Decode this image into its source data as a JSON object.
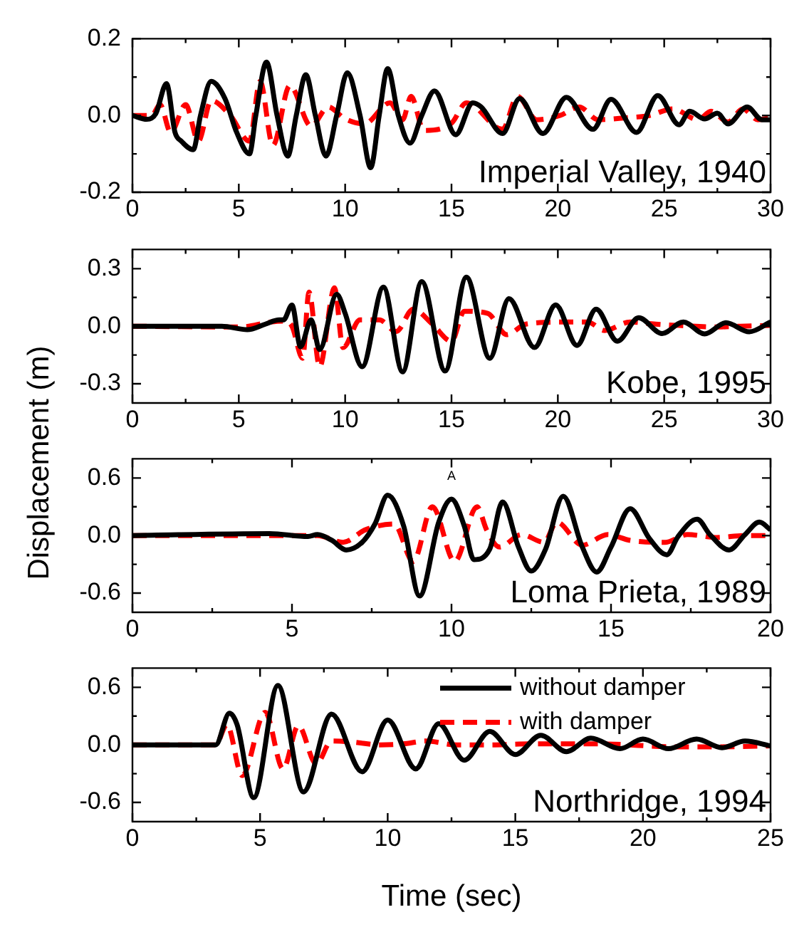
{
  "chart_data": [
    {
      "type": "line",
      "ylabel": "Displacement (m)",
      "xlim": [
        0,
        30
      ],
      "xticks": [
        0,
        {
          "value": 2.5,
          "label": null
        },
        5,
        {
          "value": 7.5,
          "label": null
        },
        10,
        {
          "value": 12.5,
          "label": null
        },
        15,
        {
          "value": 17.5,
          "label": null
        },
        20,
        {
          "value": 22.5,
          "label": null
        },
        25,
        {
          "value": 27.5,
          "label": null
        },
        30
      ],
      "ylim": [
        -0.2,
        0.2
      ],
      "yticks": [
        -0.2,
        {
          "value": -0.1,
          "label": null
        },
        {
          "value": 0,
          "label": "0.0"
        },
        {
          "value": 0.1,
          "label": null
        },
        0.2
      ],
      "annotations": [
        "Imperial Valley, 1940"
      ],
      "legend": false,
      "series": [
        {
          "color": "#000000",
          "line_style": "solid",
          "x": [
            0,
            0.67,
            1.1,
            1.6,
            2.0,
            2.3,
            2.86,
            3.2,
            3.7,
            4.35,
            4.9,
            5.5,
            5.8,
            6.3,
            6.8,
            7.3,
            7.7,
            8.15,
            8.6,
            9.1,
            9.6,
            10.1,
            10.7,
            11.2,
            11.6,
            12.0,
            12.5,
            13.05,
            13.6,
            14.2,
            15.2,
            16.0,
            16.4,
            17.4,
            18.2,
            19.3,
            20.4,
            21.65,
            22.5,
            23.7,
            24.7,
            25.7,
            26.2,
            26.9,
            27.5,
            28.0,
            28.9,
            29.6,
            30
          ],
          "values": [
            0,
            -0.01,
            0.005,
            0.083,
            -0.044,
            -0.067,
            -0.089,
            0,
            0.089,
            0.044,
            -0.044,
            -0.1,
            0,
            0.139,
            0,
            -0.106,
            0,
            0.106,
            0,
            -0.106,
            0,
            0.111,
            0,
            -0.136,
            0,
            0.122,
            0,
            -0.072,
            0,
            0.064,
            -0.05,
            0.033,
            0.022,
            -0.047,
            0.044,
            -0.047,
            0.047,
            -0.036,
            0.042,
            -0.044,
            0.052,
            -0.024,
            0.011,
            -0.009,
            0.006,
            -0.022,
            0.022,
            -0.011,
            -0.011
          ]
        },
        {
          "color": "#ff0000",
          "line_style": "dashed",
          "x": [
            0,
            0.9,
            1.3,
            1.8,
            2.5,
            3.1,
            3.7,
            4.6,
            5.5,
            6.0,
            6.6,
            7.4,
            8.4,
            9.2,
            10.0,
            10.9,
            12.1,
            12.7,
            13.1,
            13.7,
            15.0,
            15.7,
            17.4,
            18.1,
            19.0,
            20.1,
            21.0,
            21.9,
            23.2,
            24.3,
            25.4,
            26.6,
            27.2,
            28.0,
            28.7,
            29.4,
            30
          ],
          "values": [
            0,
            0,
            0.028,
            -0.044,
            0.028,
            -0.067,
            0.039,
            0,
            -0.067,
            0.089,
            -0.078,
            0.078,
            -0.028,
            0.022,
            -0.009,
            -0.022,
            0.033,
            -0.011,
            0.05,
            -0.039,
            -0.02,
            0.033,
            -0.036,
            0.05,
            -0.011,
            0,
            0.022,
            -0.011,
            -0.006,
            0,
            0.017,
            -0.011,
            0.011,
            -0.017,
            0.017,
            -0.011,
            -0.006
          ]
        }
      ]
    },
    {
      "type": "line",
      "xlim": [
        0,
        30
      ],
      "xticks": [
        0,
        {
          "value": 2.5,
          "label": null
        },
        5,
        {
          "value": 7.5,
          "label": null
        },
        10,
        {
          "value": 12.5,
          "label": null
        },
        15,
        {
          "value": 17.5,
          "label": null
        },
        20,
        {
          "value": 22.5,
          "label": null
        },
        25,
        {
          "value": 27.5,
          "label": null
        },
        30
      ],
      "ylim": [
        -0.4,
        0.4
      ],
      "yticks": [
        -0.3,
        {
          "value": -0.15,
          "label": null
        },
        {
          "value": 0,
          "label": "0.0"
        },
        {
          "value": 0.15,
          "label": null
        },
        0.3
      ],
      "annotations": [
        "Kobe, 1995"
      ],
      "legend": false,
      "series": [
        {
          "color": "#000000",
          "line_style": "solid",
          "x": [
            0,
            4.2,
            5.4,
            6.25,
            6.9,
            7.1,
            7.5,
            7.9,
            8.4,
            8.8,
            9.6,
            10.0,
            10.8,
            11.8,
            12.7,
            13.6,
            14.7,
            15.7,
            16.8,
            17.7,
            18.9,
            19.9,
            20.9,
            21.8,
            22.8,
            23.8,
            24.9,
            25.9,
            26.9,
            27.9,
            29.0,
            30
          ],
          "values": [
            0,
            0,
            -0.018,
            0.011,
            0.033,
            0.033,
            0.11,
            -0.107,
            0.033,
            -0.122,
            0.167,
            0.067,
            -0.211,
            0.204,
            -0.238,
            0.233,
            -0.233,
            0.256,
            -0.167,
            0.144,
            -0.111,
            0.111,
            -0.1,
            0.089,
            -0.078,
            0.044,
            -0.038,
            0.022,
            -0.04,
            0.018,
            -0.029,
            0.022
          ]
        },
        {
          "color": "#ff0000",
          "line_style": "dashed",
          "x": [
            0,
            5.1,
            6.5,
            7.1,
            7.5,
            8.0,
            8.3,
            8.8,
            9.5,
            9.9,
            10.7,
            11.6,
            12.4,
            13.2,
            14.1,
            15.0,
            15.6,
            16.7,
            17.6,
            18.5,
            20.3,
            21.4,
            22.2,
            23.4,
            24.6,
            25.7,
            27.5,
            28.6,
            30
          ],
          "values": [
            0,
            -0.004,
            0.022,
            0.027,
            0,
            -0.167,
            0.178,
            -0.211,
            0.2,
            -0.111,
            0.033,
            0.033,
            -0.027,
            0.089,
            0.011,
            -0.078,
            0.078,
            0.067,
            -0.044,
            0.011,
            0.022,
            0.022,
            -0.022,
            0.022,
            0.011,
            0.004,
            -0.004,
            0,
            0.004
          ]
        }
      ]
    },
    {
      "type": "line",
      "xlim": [
        0,
        20
      ],
      "xticks": [
        0,
        {
          "value": 2.5,
          "label": null
        },
        5,
        {
          "value": 7.5,
          "label": null
        },
        10,
        {
          "value": 12.5,
          "label": null
        },
        15,
        {
          "value": 17.5,
          "label": null
        },
        20
      ],
      "ylim": [
        -0.8,
        0.8
      ],
      "yticks": [
        -0.6,
        {
          "value": -0.3,
          "label": null
        },
        {
          "value": 0,
          "label": "0.0"
        },
        {
          "value": 0.3,
          "label": null
        },
        0.6
      ],
      "annotations": [
        "Loma Prieta, 1989",
        "A"
      ],
      "legend": false,
      "series": [
        {
          "color": "#000000",
          "line_style": "solid",
          "x": [
            0,
            4.3,
            5.5,
            5.8,
            6.25,
            6.7,
            7.2,
            7.6,
            8.0,
            8.5,
            9.0,
            9.6,
            10.0,
            10.4,
            10.7,
            11.2,
            11.6,
            12.1,
            12.5,
            12.95,
            13.5,
            14.1,
            14.55,
            15.0,
            15.6,
            16.2,
            16.75,
            17.1,
            17.7,
            18.1,
            18.7,
            19.2,
            19.65,
            20
          ],
          "values": [
            0,
            0.02,
            -0.01,
            0.01,
            -0.05,
            -0.15,
            -0.07,
            0.12,
            0.42,
            0.1,
            -0.63,
            0.14,
            0.38,
            0.1,
            -0.25,
            -0.14,
            0.35,
            -0.12,
            -0.37,
            -0.14,
            0.41,
            -0.12,
            -0.38,
            -0.12,
            0.28,
            -0.03,
            -0.2,
            -0.01,
            0.17,
            0.01,
            -0.15,
            0.01,
            0.14,
            0.06
          ]
        },
        {
          "color": "#ff0000",
          "line_style": "dashed",
          "x": [
            0,
            5.8,
            6.6,
            7.3,
            8.2,
            8.8,
            9.4,
            10.1,
            10.8,
            11.1,
            11.5,
            12.2,
            12.9,
            13.3,
            14.1,
            14.9,
            15.6,
            16.7,
            17.4,
            18.3,
            19.2,
            20
          ],
          "values": [
            0,
            0,
            -0.07,
            0.06,
            0.12,
            -0.27,
            0.3,
            -0.27,
            0.3,
            0.06,
            -0.12,
            0.01,
            -0.07,
            0.14,
            -0.1,
            0.01,
            -0.05,
            -0.07,
            0.01,
            -0.02,
            0,
            0
          ]
        }
      ]
    },
    {
      "type": "line",
      "xlabel": "Time (sec)",
      "xlim": [
        0,
        25
      ],
      "xticks": [
        0,
        {
          "value": 2.5,
          "label": null
        },
        5,
        {
          "value": 7.5,
          "label": null
        },
        10,
        {
          "value": 12.5,
          "label": null
        },
        15,
        {
          "value": 17.5,
          "label": null
        },
        20,
        {
          "value": 22.5,
          "label": null
        },
        25
      ],
      "ylim": [
        -0.8,
        0.8
      ],
      "yticks": [
        -0.6,
        {
          "value": -0.3,
          "label": null
        },
        {
          "value": 0,
          "label": "0.0"
        },
        {
          "value": 0.3,
          "label": null
        },
        0.6
      ],
      "annotations": [
        "Northridge, 1994"
      ],
      "legend": "top right",
      "series": [
        {
          "name": "without damper",
          "color": "#000000",
          "line_style": "solid",
          "x": [
            0,
            3.26,
            3.8,
            4.1,
            4.75,
            5.7,
            6.7,
            7.8,
            9.0,
            10.0,
            11.1,
            12.0,
            13.0,
            14.0,
            15.0,
            16.0,
            17.0,
            17.96,
            19.1,
            20.0,
            21.0,
            22.1,
            23.1,
            24.0,
            25
          ],
          "values": [
            0,
            0,
            0.33,
            0.21,
            -0.55,
            0.62,
            -0.49,
            0.32,
            -0.28,
            0.26,
            -0.25,
            0.22,
            -0.16,
            0.14,
            -0.1,
            0.1,
            -0.07,
            0.07,
            -0.04,
            0.06,
            -0.04,
            0.06,
            -0.03,
            0.04,
            -0.01
          ]
        },
        {
          "name": "with damper",
          "color": "#ff0000",
          "line_style": "dashed",
          "x": [
            0,
            3.26,
            3.7,
            4.3,
            5.2,
            5.9,
            6.5,
            7.2,
            7.8,
            8.6,
            9.7,
            10.6,
            11.5,
            12.7,
            14.0,
            15.6,
            18.4,
            21.2,
            23.1,
            25
          ],
          "values": [
            0,
            0,
            0.21,
            -0.32,
            0.34,
            -0.25,
            0.2,
            -0.2,
            0.04,
            0.03,
            0,
            0.01,
            0.04,
            0,
            0,
            0.01,
            0.01,
            -0.02,
            -0.02,
            -0.01
          ]
        }
      ]
    }
  ]
}
